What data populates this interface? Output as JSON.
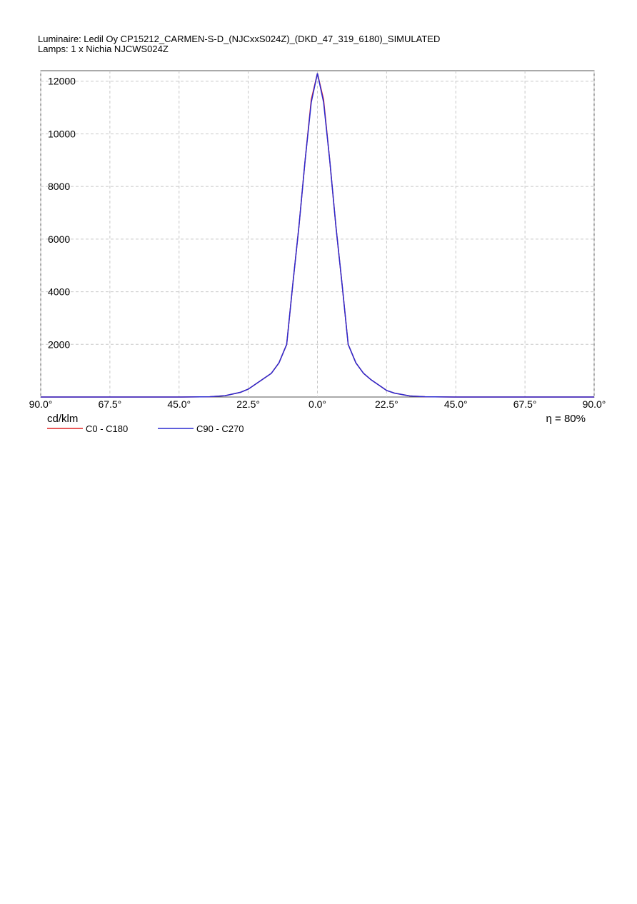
{
  "chart_data": {
    "type": "line",
    "title": "Luminaire: Ledil Oy CP15212_CARMEN-S-D_(NJCxxS024Z)_(DKD_47_319_6180)_SIMULATED",
    "subtitle": "Lamps: 1 x Nichia NJCWS024Z",
    "y_label": "cd/klm",
    "annotation": "η = 80%",
    "x": [
      -90,
      -60,
      -45,
      -35,
      -30,
      -25,
      -22.5,
      -20,
      -17.5,
      -15,
      -12.5,
      -10,
      -8,
      -6,
      -4,
      -2,
      0,
      2,
      4,
      6,
      8,
      10,
      12.5,
      15,
      17.5,
      20,
      22.5,
      25,
      30,
      35,
      45,
      60,
      90
    ],
    "series": [
      {
        "name": "C0 - C180",
        "color": "#e02020",
        "values": [
          0,
          0,
          0,
          10,
          50,
          180,
          300,
          500,
          700,
          900,
          1300,
          2000,
          4300,
          6500,
          9000,
          11300,
          12300,
          11300,
          9000,
          6500,
          4300,
          2000,
          1300,
          900,
          650,
          450,
          250,
          150,
          40,
          10,
          0,
          0,
          0
        ]
      },
      {
        "name": "C90 - C270",
        "color": "#2a2ad0",
        "values": [
          0,
          0,
          0,
          10,
          50,
          180,
          300,
          500,
          700,
          900,
          1300,
          2000,
          4300,
          6500,
          9000,
          11200,
          12300,
          11200,
          9000,
          6500,
          4300,
          2000,
          1300,
          900,
          650,
          450,
          250,
          150,
          40,
          10,
          0,
          0,
          0
        ]
      }
    ],
    "xlim": [
      -90,
      90
    ],
    "xticks": [
      {
        "value": -90,
        "label": "90.0°"
      },
      {
        "value": -67.5,
        "label": "67.5°"
      },
      {
        "value": -45,
        "label": "45.0°"
      },
      {
        "value": -22.5,
        "label": "22.5°"
      },
      {
        "value": 0,
        "label": "0.0°"
      },
      {
        "value": 22.5,
        "label": "22.5°"
      },
      {
        "value": 45,
        "label": "45.0°"
      },
      {
        "value": 67.5,
        "label": "67.5°"
      },
      {
        "value": 90,
        "label": "90.0°"
      }
    ],
    "ylim": [
      0,
      12400
    ],
    "yticks": [
      2000,
      4000,
      6000,
      8000,
      10000,
      12000
    ],
    "grid": true
  }
}
